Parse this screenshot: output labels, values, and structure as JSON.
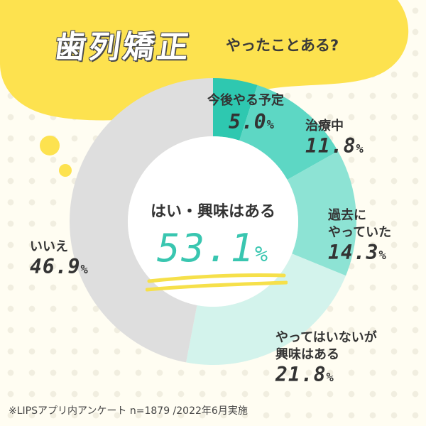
{
  "title": {
    "main": "歯列矯正",
    "sub": "やったことある?"
  },
  "center": {
    "label": "はい・興味はある",
    "value": "53.1",
    "unit": "%"
  },
  "footnote": "※LIPSアプリ内アンケート n=1879 /2022年6月実施",
  "colors": {
    "background": "#fffdf2",
    "bubble": "#fde24f",
    "accent": "#39c6b0",
    "underline": "#f6e04a"
  },
  "chart_data": {
    "type": "pie",
    "title": "歯列矯正やったことある?",
    "unit": "%",
    "slices": [
      {
        "label": "今後やる予定",
        "value": 5.0,
        "display": "5.0",
        "color": "#2ec8b0"
      },
      {
        "label": "治療中",
        "value": 11.8,
        "display": "11.8",
        "color": "#5dd7c4"
      },
      {
        "label": "過去にやっていた",
        "label_lines": [
          "過去に",
          "やっていた"
        ],
        "value": 14.3,
        "display": "14.3",
        "color": "#8de3d4"
      },
      {
        "label": "やってはいないが興味はある",
        "label_lines": [
          "やってはいないが",
          "興味はある"
        ],
        "value": 21.8,
        "display": "21.8",
        "color": "#d3f3ec"
      },
      {
        "label": "いいえ",
        "value": 46.9,
        "display": "46.9",
        "color": "#dedede"
      }
    ]
  }
}
